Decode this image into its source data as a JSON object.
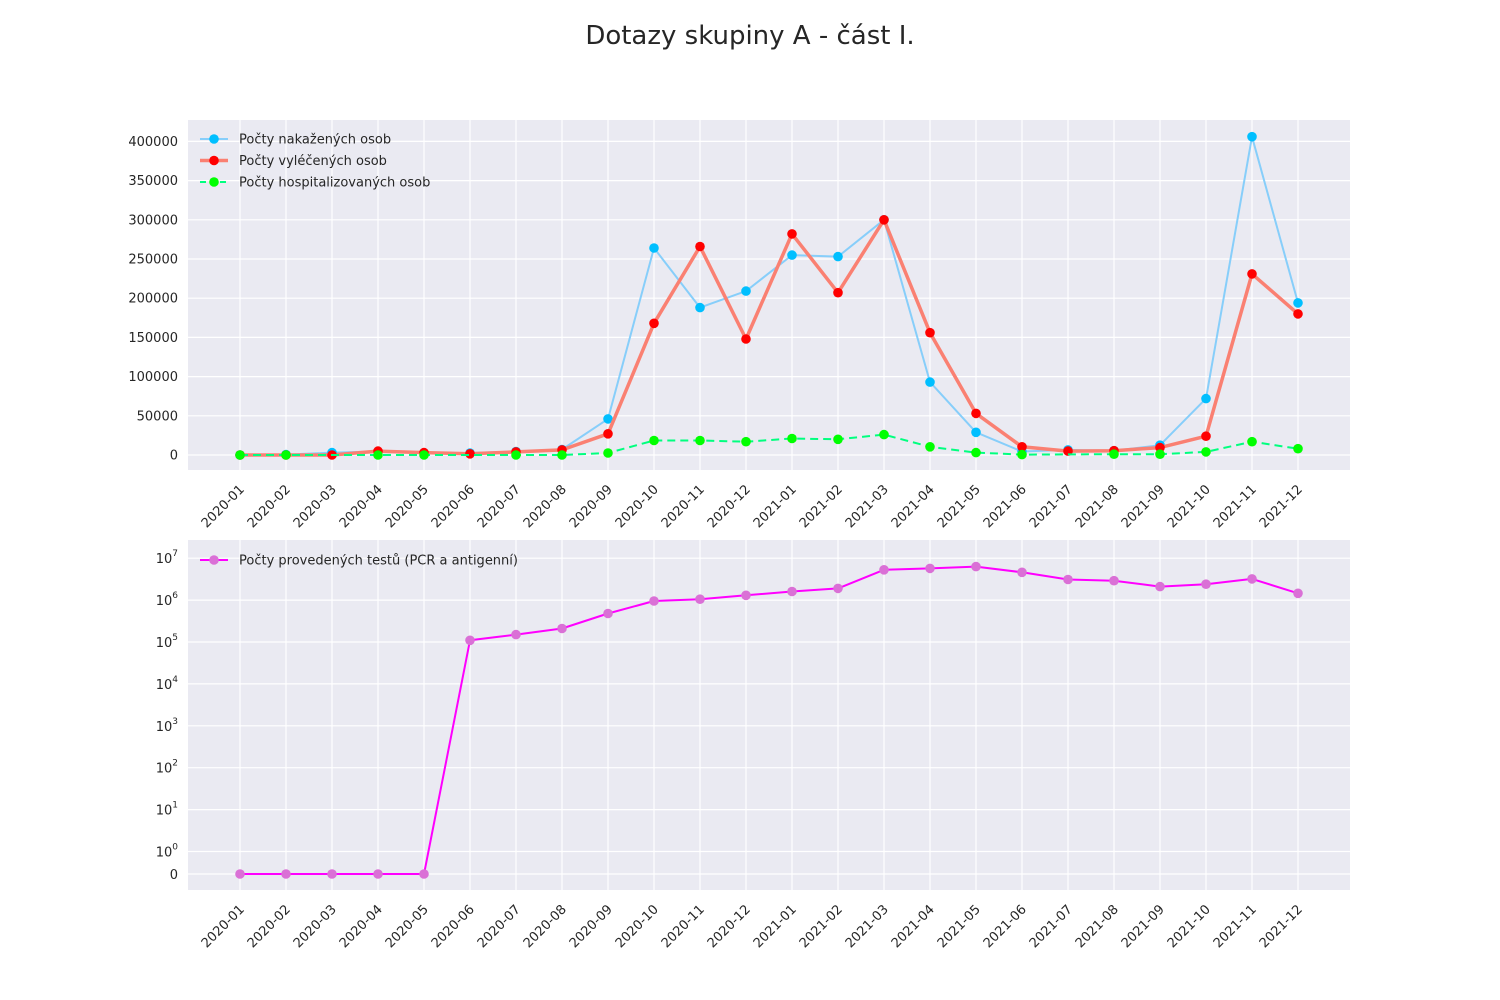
{
  "figure": {
    "suptitle": "Dotazy skupiny A - část I."
  },
  "chart_data": [
    {
      "type": "line",
      "title": "",
      "xlabel": "",
      "ylabel": "",
      "categories": [
        "2020-01",
        "2020-02",
        "2020-03",
        "2020-04",
        "2020-05",
        "2020-06",
        "2020-07",
        "2020-08",
        "2020-09",
        "2020-10",
        "2020-11",
        "2020-12",
        "2021-01",
        "2021-02",
        "2021-03",
        "2021-04",
        "2021-05",
        "2021-06",
        "2021-07",
        "2021-08",
        "2021-09",
        "2021-10",
        "2021-11",
        "2021-12"
      ],
      "ylim": [
        -20000,
        420000
      ],
      "yticks": [
        0,
        50000,
        100000,
        150000,
        200000,
        250000,
        300000,
        350000,
        400000
      ],
      "grid": true,
      "legend": "upper-left",
      "series": [
        {
          "name": "Počty nakažených osob",
          "color": "#87CEFA",
          "marker_color": "#00BFFF",
          "dashed": false,
          "values": [
            0,
            500,
            3000,
            4500,
            2500,
            2500,
            4500,
            7000,
            46000,
            264000,
            188000,
            209000,
            255000,
            253000,
            300000,
            93000,
            29000,
            4500,
            6500,
            5500,
            12500,
            72000,
            406000,
            194000
          ]
        },
        {
          "name": "Počty vyléčených osob",
          "color": "#FA8072",
          "marker_color": "#FF0000",
          "dashed": false,
          "values": [
            0,
            0,
            0,
            5000,
            3000,
            1500,
            4000,
            6500,
            27000,
            168000,
            266000,
            148000,
            282000,
            207000,
            300000,
            156000,
            53000,
            10500,
            5000,
            5500,
            9500,
            24000,
            231000,
            180000
          ]
        },
        {
          "name": "Počty hospitalizovaných osob",
          "color": "#00FF7F",
          "marker_color": "#00FF00",
          "dashed": true,
          "values": [
            0,
            0,
            null,
            0,
            0,
            null,
            0,
            0,
            2500,
            18500,
            18500,
            17000,
            21000,
            20000,
            26000,
            10500,
            3000,
            500,
            null,
            1000,
            1000,
            4000,
            17000,
            8000
          ]
        }
      ]
    },
    {
      "type": "line",
      "title": "",
      "xlabel": "",
      "ylabel": "",
      "yscale": "symlog",
      "categories": [
        "2020-01",
        "2020-02",
        "2020-03",
        "2020-04",
        "2020-05",
        "2020-06",
        "2020-07",
        "2020-08",
        "2020-09",
        "2020-10",
        "2020-11",
        "2020-12",
        "2021-01",
        "2021-02",
        "2021-03",
        "2021-04",
        "2021-05",
        "2021-06",
        "2021-07",
        "2021-08",
        "2021-09",
        "2021-10",
        "2021-11",
        "2021-12"
      ],
      "yticks_labels": [
        {
          "base": "0",
          "exp": ""
        },
        {
          "base": "10",
          "exp": "0"
        },
        {
          "base": "10",
          "exp": "1"
        },
        {
          "base": "10",
          "exp": "2"
        },
        {
          "base": "10",
          "exp": "3"
        },
        {
          "base": "10",
          "exp": "4"
        },
        {
          "base": "10",
          "exp": "5"
        },
        {
          "base": "10",
          "exp": "6"
        },
        {
          "base": "10",
          "exp": "7"
        }
      ],
      "grid": true,
      "legend": "upper-left",
      "series": [
        {
          "name": "Počty provedených testů (PCR a antigenní)",
          "color": "#FF00FF",
          "marker_color": "#DA70D6",
          "dashed": false,
          "values": [
            0,
            0,
            0,
            0,
            0,
            110000,
            150000,
            210000,
            480000,
            950000,
            1050000,
            1300000,
            1600000,
            1900000,
            5300000,
            5700000,
            6300000,
            4600000,
            3100000,
            2900000,
            2100000,
            2400000,
            3200000,
            1450000
          ]
        }
      ]
    }
  ]
}
